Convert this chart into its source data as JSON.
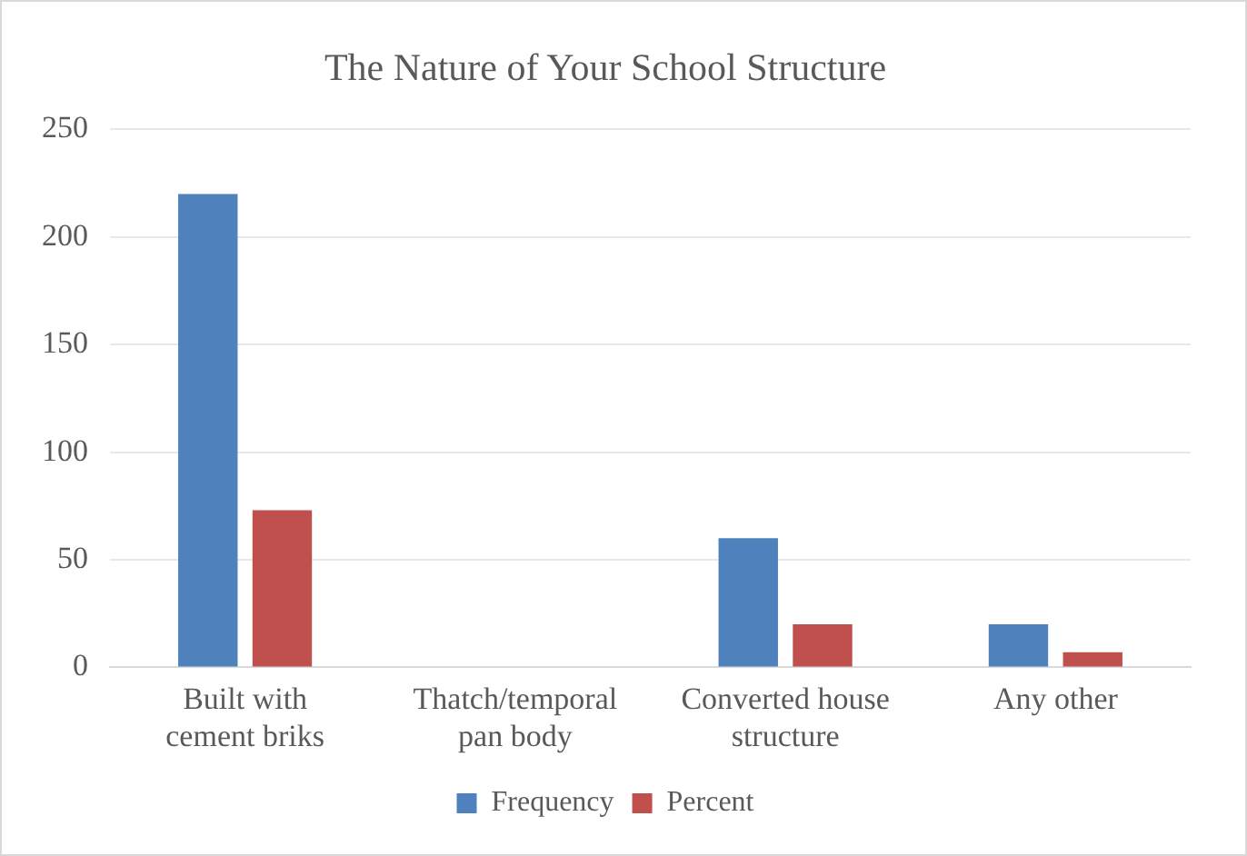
{
  "chart_data": {
    "type": "bar",
    "title": "The Nature of Your School Structure",
    "categories": [
      "Built with cement briks",
      "Thatch/temporal pan body",
      "Converted house structure",
      "Any other"
    ],
    "series": [
      {
        "name": "Frequency",
        "color": "#4f81bd",
        "values": [
          220,
          0,
          60,
          20
        ]
      },
      {
        "name": "Percent",
        "color": "#c0504d",
        "values": [
          73,
          0,
          20,
          7
        ]
      }
    ],
    "ylim": [
      0,
      250
    ],
    "yticks": [
      0,
      50,
      100,
      150,
      200,
      250
    ],
    "grid": "y",
    "legend": "bottom"
  }
}
